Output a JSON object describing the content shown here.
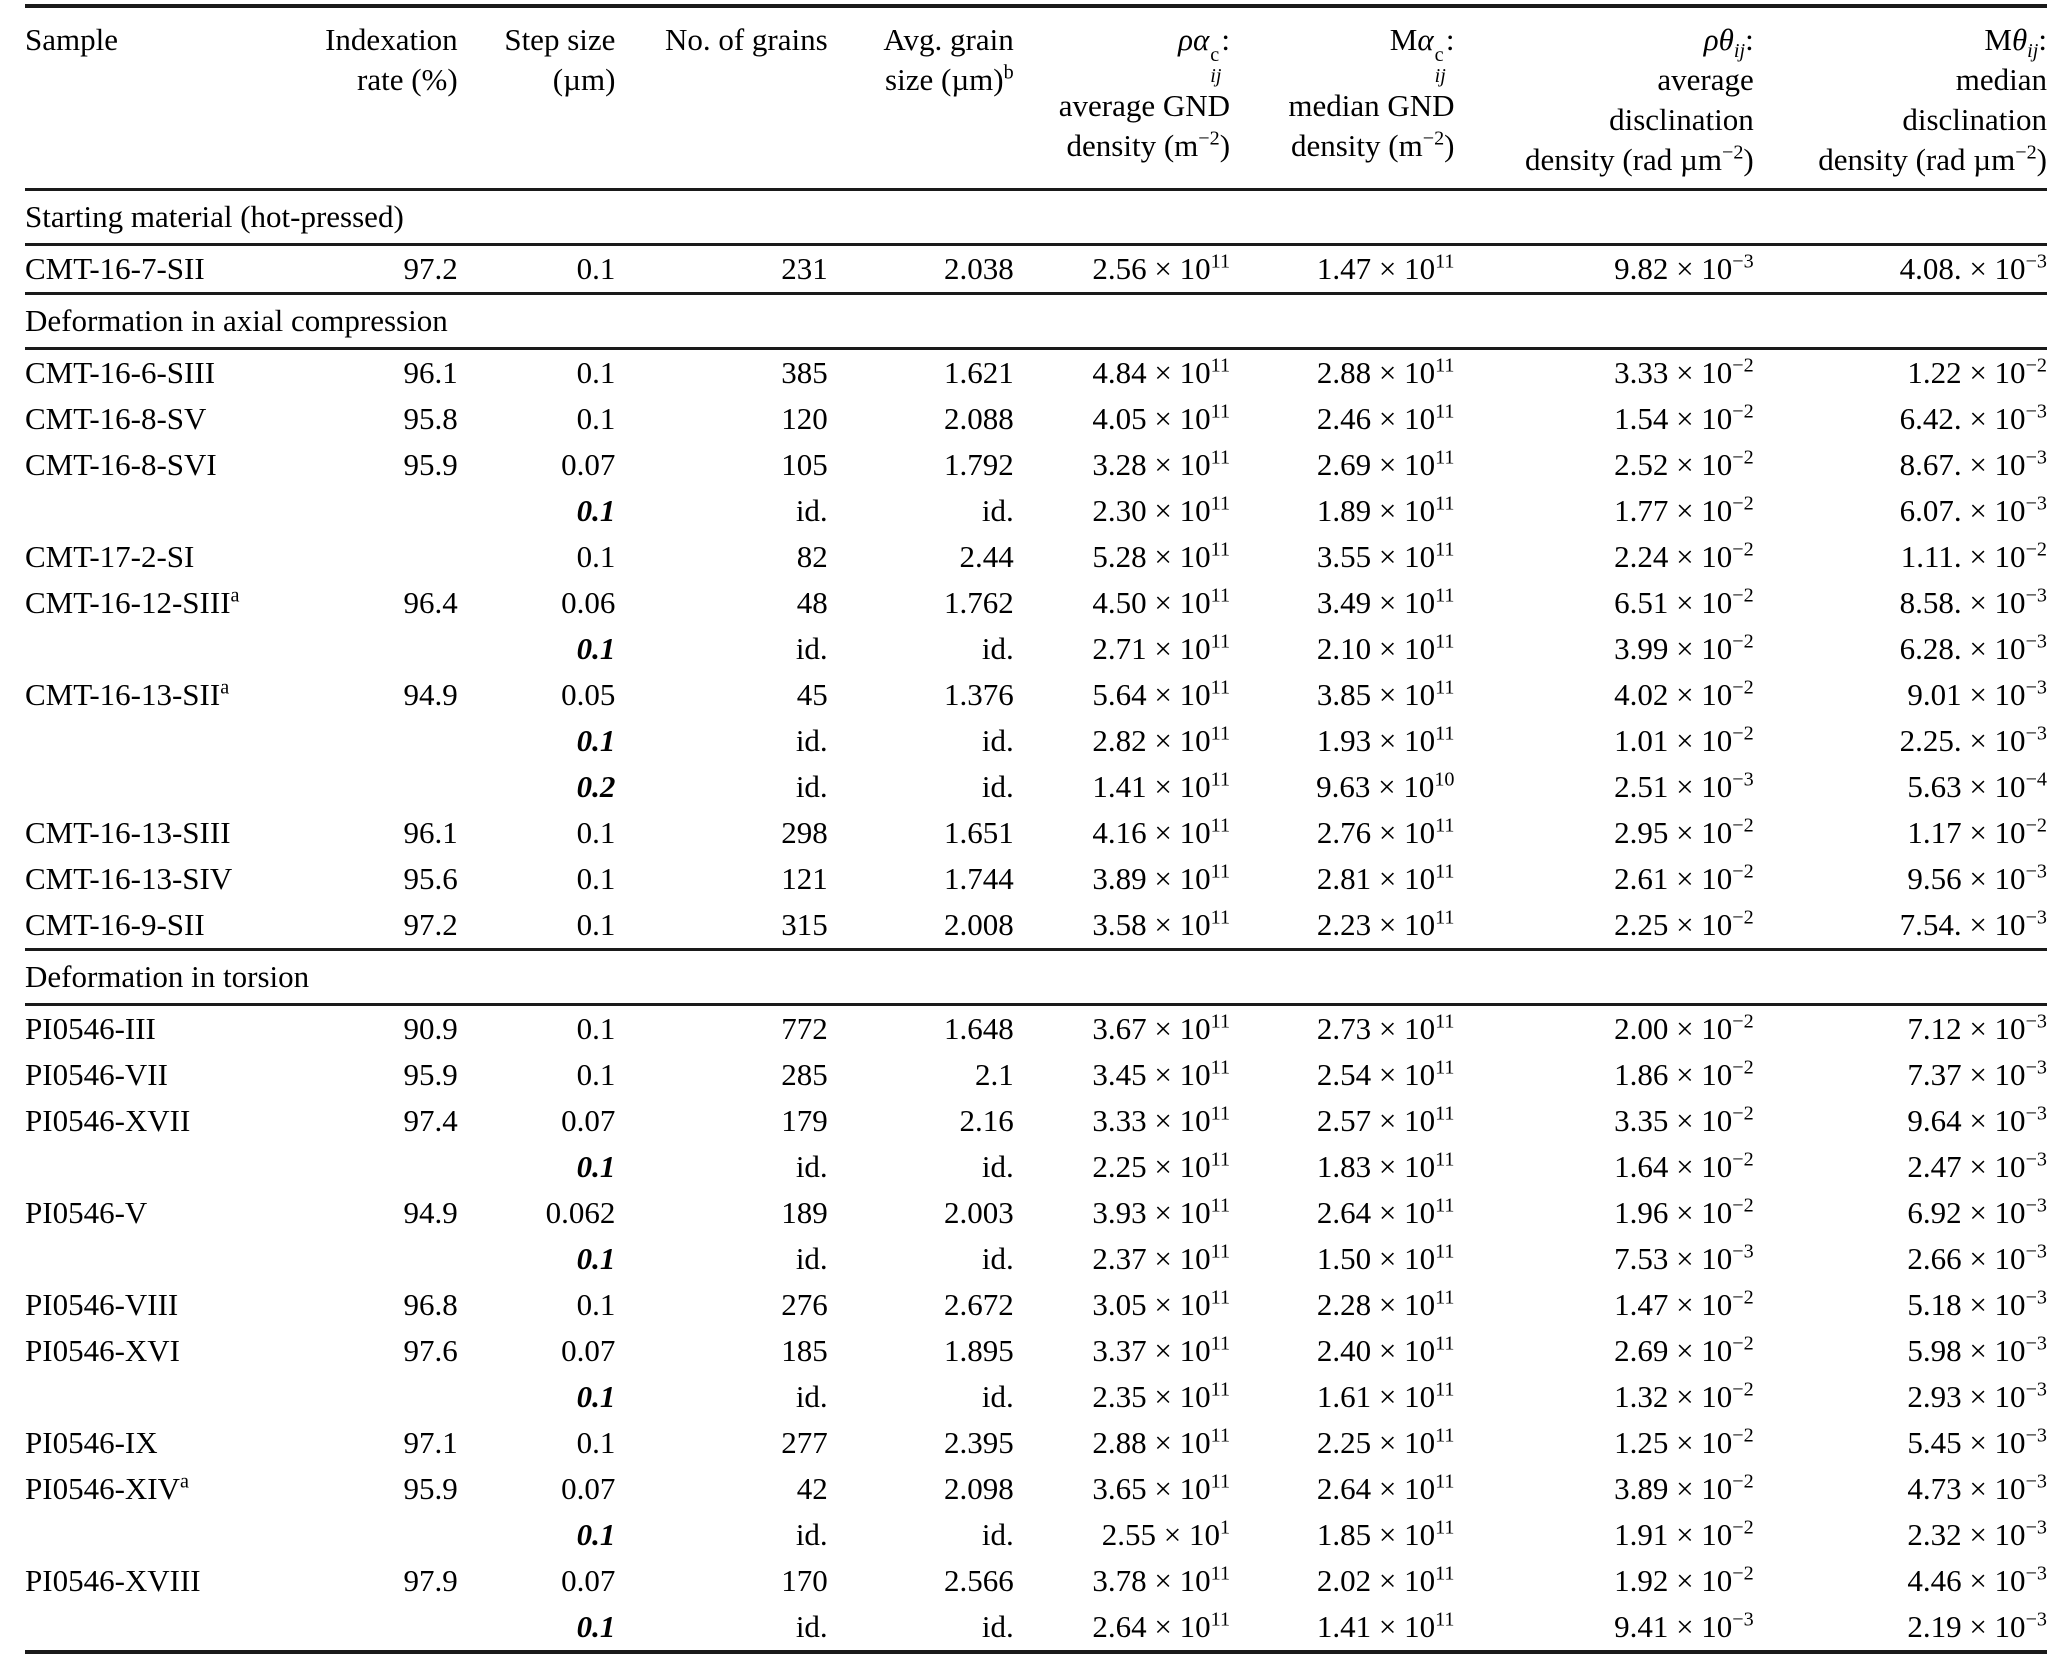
{
  "colors": {
    "text": "#000000",
    "background": "#ffffff",
    "rule": "#1a1a1a"
  },
  "table": {
    "columns": [
      {
        "id": "sample",
        "lines": [
          "Sample"
        ]
      },
      {
        "id": "indexation-rate",
        "lines": [
          "Indexation",
          "rate (%)"
        ]
      },
      {
        "id": "step-size",
        "lines": [
          "Step size",
          "(µm)"
        ]
      },
      {
        "id": "no-of-grains",
        "lines": [
          "No. of grains"
        ]
      },
      {
        "id": "avg-grain-size",
        "lines": [
          "Avg. grain",
          "size (µm)^{b}"
        ]
      },
      {
        "id": "avg-gnd-density",
        "lines": [
          "*ρα*~{c|*ij*}:",
          "average GND",
          "density (m^{−2})"
        ]
      },
      {
        "id": "median-gnd-density",
        "lines": [
          "M*α*~{c|*ij*}:",
          "median GND",
          "density (m^{−2})"
        ]
      },
      {
        "id": "avg-disclination-density",
        "lines": [
          "*ρθ*_{*ij*}:",
          "average",
          "disclination",
          "density (rad µm^{−2})"
        ]
      },
      {
        "id": "median-disclination-density",
        "lines": [
          "M*θ*_{*ij*}:",
          "median",
          "disclination",
          "density (rad µm^{−2})"
        ]
      }
    ],
    "sections": [
      {
        "title": "Starting material (hot-pressed)",
        "rows": [
          [
            "CMT-16-7-SII",
            "97.2",
            "0.1",
            "231",
            "2.038",
            "2.56 × 10^{11}",
            "1.47 × 10^{11}",
            "9.82 × 10^{−3}",
            "4.08. × 10^{−3}"
          ]
        ]
      },
      {
        "title": "Deformation in axial compression",
        "rows": [
          [
            "CMT-16-6-SIII",
            "96.1",
            "0.1",
            "385",
            "1.621",
            "4.84 × 10^{11}",
            "2.88 × 10^{11}",
            "3.33 × 10^{−2}",
            "1.22 × 10^{−2}"
          ],
          [
            "CMT-16-8-SV",
            "95.8",
            "0.1",
            "120",
            "2.088",
            "4.05 × 10^{11}",
            "2.46 × 10^{11}",
            "1.54 × 10^{−2}",
            "6.42. × 10^{−3}"
          ],
          [
            "CMT-16-8-SVI",
            "95.9",
            "0.07",
            "105",
            "1.792",
            "3.28 × 10^{11}",
            "2.69 × 10^{11}",
            "2.52 × 10^{−2}",
            "8.67. × 10^{−3}"
          ],
          [
            "",
            "",
            "**0.1**",
            "id.",
            "id.",
            "2.30 × 10^{11}",
            "1.89 × 10^{11}",
            "1.77 × 10^{−2}",
            "6.07. × 10^{−3}"
          ],
          [
            "CMT-17-2-SI",
            "",
            "0.1",
            "82",
            "2.44",
            "5.28 × 10^{11}",
            "3.55 × 10^{11}",
            "2.24 × 10^{−2}",
            "1.11. × 10^{−2}"
          ],
          [
            "CMT-16-12-SIII^{a}",
            "96.4",
            "0.06",
            "48",
            "1.762",
            "4.50 × 10^{11}",
            "3.49 × 10^{11}",
            "6.51 × 10^{−2}",
            "8.58. × 10^{−3}"
          ],
          [
            "",
            "",
            "**0.1**",
            "id.",
            "id.",
            "2.71 × 10^{11}",
            "2.10 × 10^{11}",
            "3.99 × 10^{−2}",
            "6.28. × 10^{−3}"
          ],
          [
            "CMT-16-13-SII^{a}",
            "94.9",
            "0.05",
            "45",
            "1.376",
            "5.64 × 10^{11}",
            "3.85 × 10^{11}",
            "4.02 × 10^{−2}",
            "9.01 × 10^{−3}"
          ],
          [
            "",
            "",
            "**0.1**",
            "id.",
            "id.",
            "2.82 × 10^{11}",
            "1.93 × 10^{11}",
            "1.01 × 10^{−2}",
            "2.25. × 10^{−3}"
          ],
          [
            "",
            "",
            "**0.2**",
            "id.",
            "id.",
            "1.41 × 10^{11}",
            "9.63 × 10^{10}",
            "2.51 × 10^{−3}",
            "5.63 × 10^{−4}"
          ],
          [
            "CMT-16-13-SIII",
            "96.1",
            "0.1",
            "298",
            "1.651",
            "4.16 × 10^{11}",
            "2.76 × 10^{11}",
            "2.95 × 10^{−2}",
            "1.17 × 10^{−2}"
          ],
          [
            "CMT-16-13-SIV",
            "95.6",
            "0.1",
            "121",
            "1.744",
            "3.89 × 10^{11}",
            "2.81 × 10^{11}",
            "2.61 × 10^{−2}",
            "9.56 × 10^{−3}"
          ],
          [
            "CMT-16-9-SII",
            "97.2",
            "0.1",
            "315",
            "2.008",
            "3.58 × 10^{11}",
            "2.23 × 10^{11}",
            "2.25 × 10^{−2}",
            "7.54. × 10^{−3}"
          ]
        ]
      },
      {
        "title": "Deformation in torsion",
        "rows": [
          [
            "PI0546-III",
            "90.9",
            "0.1",
            "772",
            "1.648",
            "3.67 × 10^{11}",
            "2.73 × 10^{11}",
            "2.00 × 10^{−2}",
            "7.12 × 10^{−3}"
          ],
          [
            "PI0546-VII",
            "95.9",
            "0.1",
            "285",
            "2.1",
            "3.45 × 10^{11}",
            "2.54 × 10^{11}",
            "1.86 × 10^{−2}",
            "7.37 × 10^{−3}"
          ],
          [
            "PI0546-XVII",
            "97.4",
            "0.07",
            "179",
            "2.16",
            "3.33 × 10^{11}",
            "2.57 × 10^{11}",
            "3.35 × 10^{−2}",
            "9.64 × 10^{−3}"
          ],
          [
            "",
            "",
            "**0.1**",
            "id.",
            "id.",
            "2.25 × 10^{11}",
            "1.83 × 10^{11}",
            "1.64 × 10^{−2}",
            "2.47 × 10^{−3}"
          ],
          [
            "PI0546-V",
            "94.9",
            "0.062",
            "189",
            "2.003",
            "3.93 × 10^{11}",
            "2.64 × 10^{11}",
            "1.96 × 10^{−2}",
            "6.92 × 10^{−3}"
          ],
          [
            "",
            "",
            "**0.1**",
            "id.",
            "id.",
            "2.37 × 10^{11}",
            "1.50 × 10^{11}",
            "7.53 × 10^{−3}",
            "2.66 × 10^{−3}"
          ],
          [
            "PI0546-VIII",
            "96.8",
            "0.1",
            "276",
            "2.672",
            "3.05 × 10^{11}",
            "2.28 × 10^{11}",
            "1.47 × 10^{−2}",
            "5.18 × 10^{−3}"
          ],
          [
            "PI0546-XVI",
            "97.6",
            "0.07",
            "185",
            "1.895",
            "3.37 × 10^{11}",
            "2.40 × 10^{11}",
            "2.69 × 10^{−2}",
            "5.98 × 10^{−3}"
          ],
          [
            "",
            "",
            "**0.1**",
            "id.",
            "id.",
            "2.35 × 10^{11}",
            "1.61 × 10^{11}",
            "1.32 × 10^{−2}",
            "2.93 × 10^{−3}"
          ],
          [
            "PI0546-IX",
            "97.1",
            "0.1",
            "277",
            "2.395",
            "2.88 × 10^{11}",
            "2.25 × 10^{11}",
            "1.25 × 10^{−2}",
            "5.45 × 10^{−3}"
          ],
          [
            "PI0546-XIV^{a}",
            "95.9",
            "0.07",
            "42",
            "2.098",
            "3.65 × 10^{11}",
            "2.64 × 10^{11}",
            "3.89 × 10^{−2}",
            "4.73 × 10^{−3}"
          ],
          [
            "",
            "",
            "**0.1**",
            "id.",
            "id.",
            "2.55 × 10^{1}",
            "1.85 × 10^{11}",
            "1.91 × 10^{−2}",
            "2.32 × 10^{−3}"
          ],
          [
            "PI0546-XVIII",
            "97.9",
            "0.07",
            "170",
            "2.566",
            "3.78 × 10^{11}",
            "2.02 × 10^{11}",
            "1.92 × 10^{−2}",
            "4.46 × 10^{−3}"
          ],
          [
            "",
            "",
            "**0.1**",
            "id.",
            "id.",
            "2.64 × 10^{11}",
            "1.41 × 10^{11}",
            "9.41 × 10^{−3}",
            "2.19 × 10^{−3}"
          ]
        ]
      }
    ]
  }
}
